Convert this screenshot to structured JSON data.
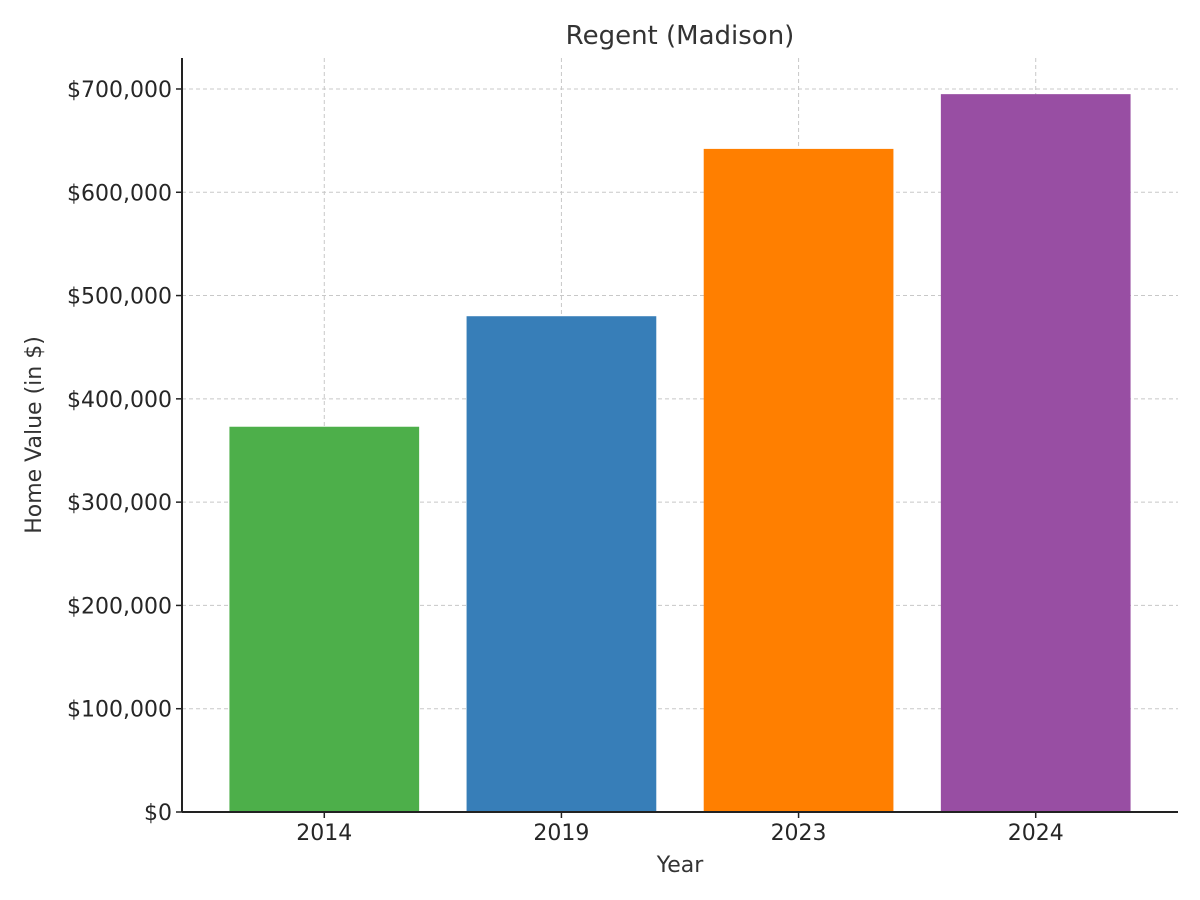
{
  "chart_data": {
    "type": "bar",
    "title": "Regent (Madison)",
    "xlabel": "Year",
    "ylabel": "Home Value (in $)",
    "categories": [
      "2014",
      "2019",
      "2023",
      "2024"
    ],
    "values": [
      373000,
      480000,
      642000,
      695000
    ],
    "colors": [
      "#4daf4a",
      "#377eb8",
      "#ff7f00",
      "#984ea3"
    ],
    "ylim": [
      0,
      730000
    ],
    "yticks": [
      0,
      100000,
      200000,
      300000,
      400000,
      500000,
      600000,
      700000
    ],
    "ytick_labels": [
      "$0",
      "$100,000",
      "$200,000",
      "$300,000",
      "$400,000",
      "$500,000",
      "$600,000",
      "$700,000"
    ],
    "grid": true,
    "legend": false
  }
}
